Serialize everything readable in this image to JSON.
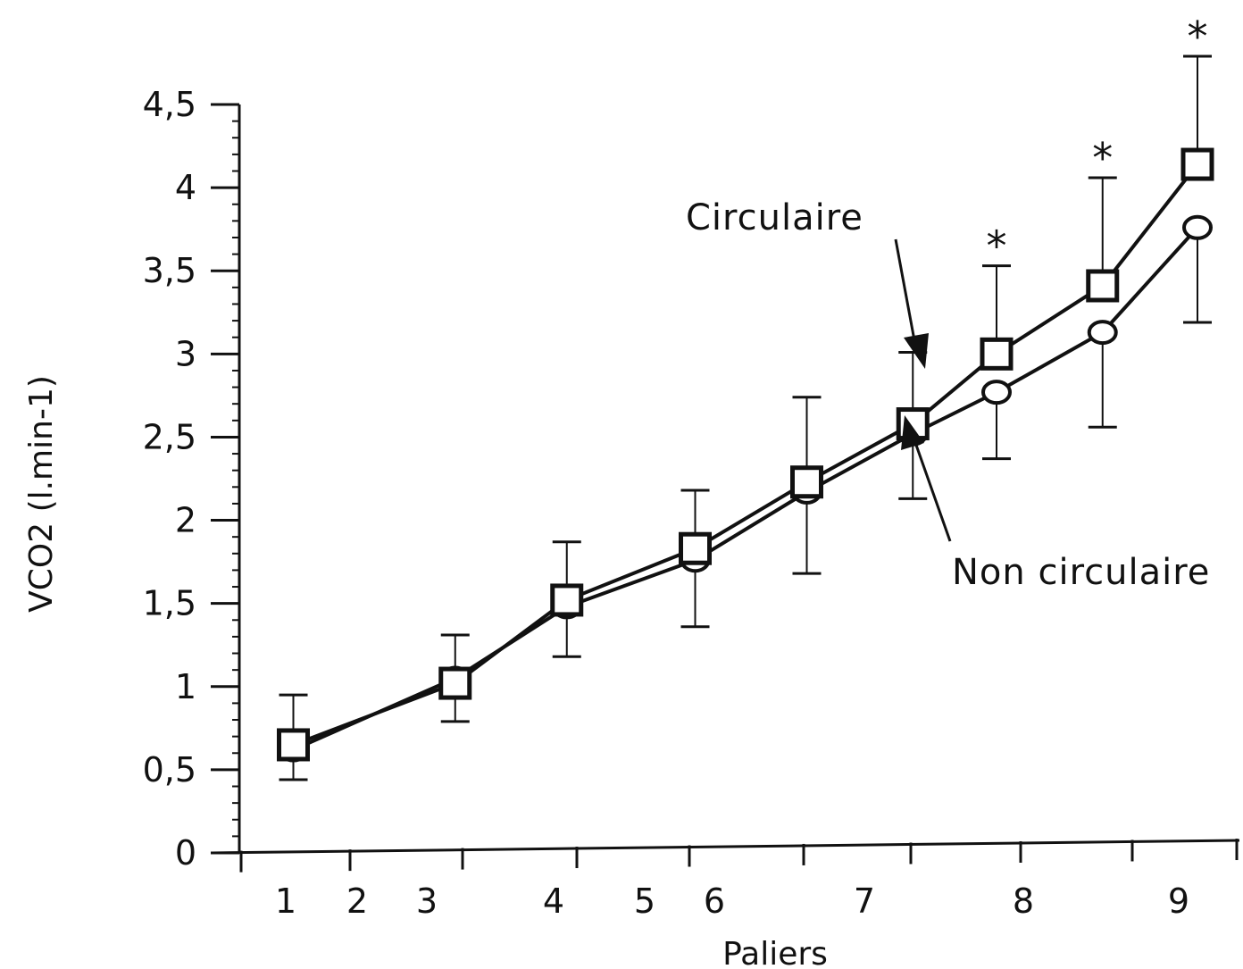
{
  "chart_data": {
    "type": "line",
    "title": "",
    "xlabel": "Paliers",
    "ylabel": "VCO2  (l.min-1)",
    "ylim": [
      0,
      4.5
    ],
    "y_ticks": [
      {
        "value": 0,
        "label": "0"
      },
      {
        "value": 0.5,
        "label": "0,5"
      },
      {
        "value": 1,
        "label": "1"
      },
      {
        "value": 1.5,
        "label": "1,5"
      },
      {
        "value": 2,
        "label": "2"
      },
      {
        "value": 2.5,
        "label": "2,5"
      },
      {
        "value": 3,
        "label": "3"
      },
      {
        "value": 3.5,
        "label": "3,5"
      },
      {
        "value": 4,
        "label": "4"
      },
      {
        "value": 4.5,
        "label": "4,5"
      }
    ],
    "x_tick_labels": [
      "1",
      "2",
      "3",
      "4",
      "5",
      "6",
      "7",
      "8",
      "9"
    ],
    "series": [
      {
        "name": "Circulaire",
        "marker": "square",
        "x": [
          1.1,
          2.55,
          3.55,
          4.7,
          5.7,
          6.65,
          7.4,
          8.35,
          9.2
        ],
        "values": [
          0.65,
          1.02,
          1.52,
          1.83,
          2.23,
          2.58,
          3.0,
          3.41,
          4.14
        ],
        "error": [
          0.3,
          0.29,
          0.35,
          0.35,
          0.51,
          0.43,
          0.53,
          0.65,
          0.65
        ]
      },
      {
        "name": "Non circulaire",
        "marker": "circle",
        "x": [
          1.1,
          2.55,
          3.55,
          4.7,
          5.7,
          6.65,
          7.4,
          8.35,
          9.2
        ],
        "values": [
          0.62,
          1.05,
          1.48,
          1.76,
          2.17,
          2.52,
          2.77,
          3.13,
          3.76
        ],
        "error": [
          0.18,
          0.26,
          0.3,
          0.4,
          0.49,
          0.39,
          0.4,
          0.57,
          0.57
        ]
      }
    ],
    "significance_marks": [
      {
        "x": 7.4,
        "label": "*"
      },
      {
        "x": 8.35,
        "label": "*"
      },
      {
        "x": 9.2,
        "label": "*"
      }
    ],
    "annotations": [
      "Circulaire",
      "Non  circulaire"
    ],
    "grid": false,
    "colors": {
      "line": "#111111",
      "marker_fill": "#ffffff"
    }
  }
}
